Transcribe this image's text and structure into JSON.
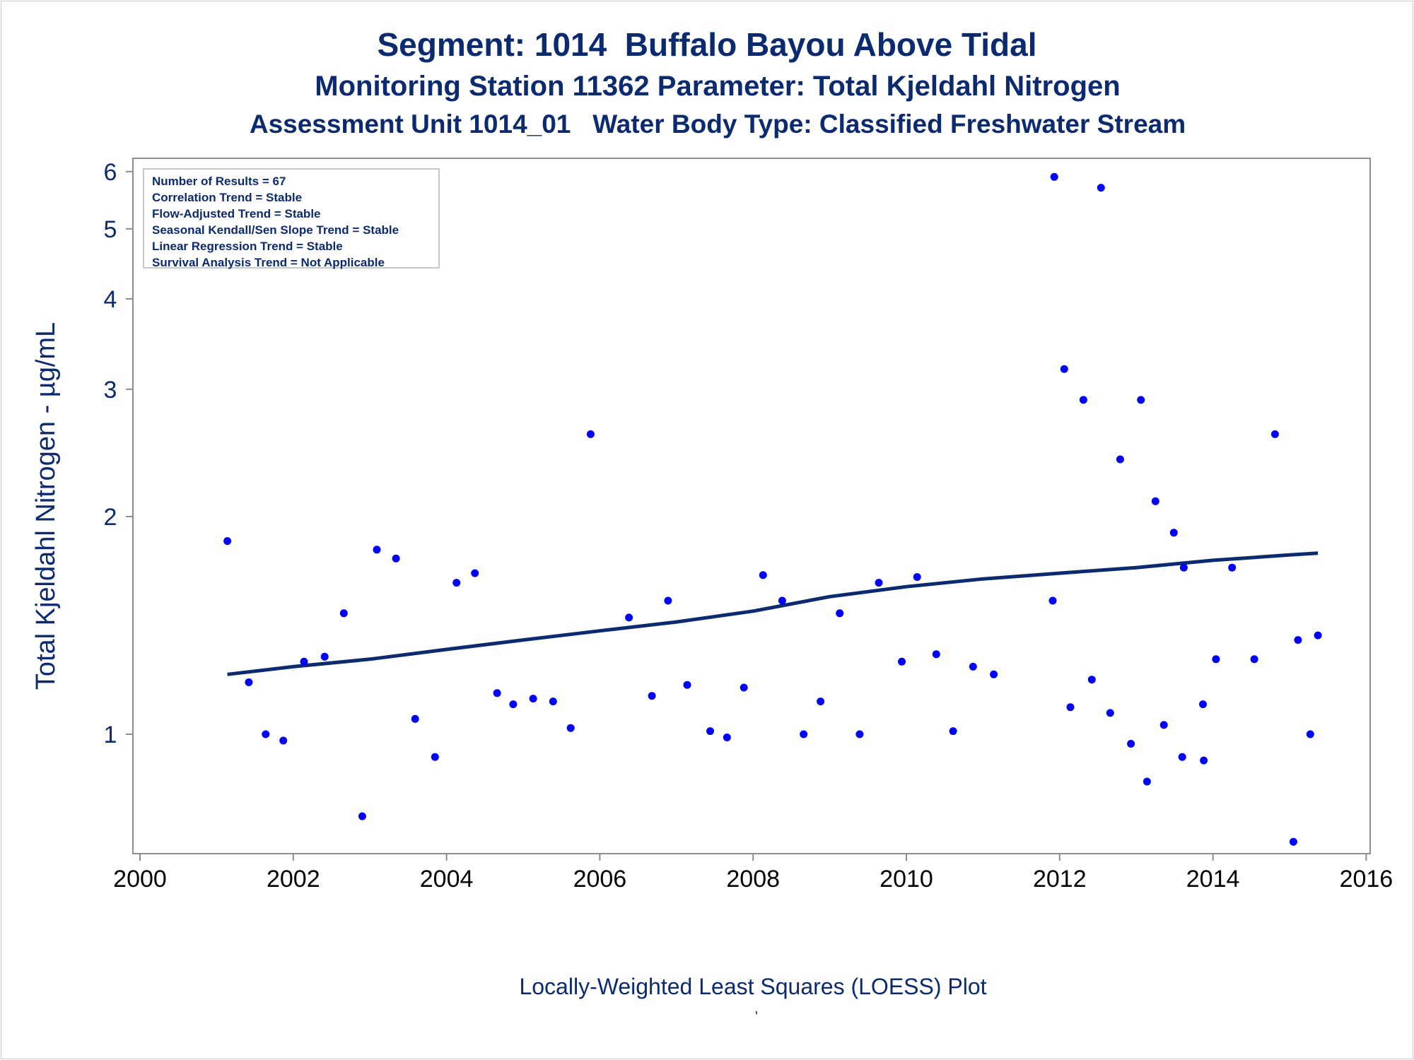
{
  "titles": {
    "line1": "Segment: 1014  Buffalo Bayou Above Tidal",
    "line2": "Monitoring Station 11362 Parameter: Total Kjeldahl Nitrogen",
    "line3": "Assessment Unit 1014_01   Water Body Type: Classified Freshwater Stream"
  },
  "stats_box": [
    "Number of Results = 67",
    "Correlation Trend = Stable",
    "Flow-Adjusted Trend = Stable",
    "Seasonal Kendall/Sen Slope Trend = Stable",
    "Linear Regression Trend = Stable",
    "Survival Analysis Trend = Not Applicable"
  ],
  "footnote": "Locally-Weighted Least Squares (LOESS) Plot",
  "footnote_mark": "'",
  "colors": {
    "text": "#0b2a6f",
    "points": "#0000ff",
    "loess": "#0b2a6f",
    "frame": "#8c8c8c"
  },
  "chart_data": {
    "type": "scatter",
    "title": "Segment: 1014  Buffalo Bayou Above Tidal",
    "xlabel": "",
    "ylabel": "Total Kjeldahl Nitrogen -  µg/mL",
    "xlim": [
      2000,
      2016
    ],
    "ylim": [
      0.6,
      6.1
    ],
    "y_scale": "log",
    "x_ticks": [
      "2000",
      "2002",
      "2004",
      "2006",
      "2008",
      "2010",
      "2012",
      "2014",
      "2016"
    ],
    "y_ticks": [
      "1",
      "2",
      "3",
      "4",
      "5",
      "6"
    ],
    "grid": false,
    "series": [
      {
        "type": "scatter",
        "x": [
          2001.14,
          2001.42,
          2001.64,
          2001.87,
          2002.14,
          2002.41,
          2002.66,
          2002.9,
          2003.09,
          2003.34,
          2003.59,
          2003.85,
          2004.13,
          2004.37,
          2004.66,
          2004.87,
          2005.13,
          2005.39,
          2005.62,
          2005.88,
          2006.38,
          2006.68,
          2006.89,
          2007.14,
          2007.44,
          2007.66,
          2007.88,
          2008.13,
          2008.38,
          2008.66,
          2008.88,
          2009.13,
          2009.39,
          2009.64,
          2009.94,
          2010.14,
          2010.39,
          2010.61,
          2010.87,
          2011.14,
          2011.91,
          2011.93,
          2012.06,
          2012.14,
          2012.31,
          2012.42,
          2012.54,
          2012.66,
          2012.79,
          2012.93,
          2013.06,
          2013.14,
          2013.25,
          2013.36,
          2013.49,
          2013.6,
          2013.62,
          2013.87,
          2013.88,
          2014.04,
          2014.25,
          2014.54,
          2014.81,
          2015.05,
          2015.11,
          2015.27,
          2015.37
        ],
        "y": [
          1.85,
          1.18,
          1.0,
          0.98,
          1.26,
          1.28,
          1.47,
          0.77,
          1.8,
          1.75,
          1.05,
          0.93,
          1.62,
          1.67,
          1.14,
          1.1,
          1.12,
          1.11,
          1.02,
          2.6,
          1.45,
          1.13,
          1.53,
          1.17,
          1.01,
          0.99,
          1.16,
          1.66,
          1.53,
          1.0,
          1.11,
          1.47,
          1.0,
          1.62,
          1.26,
          1.65,
          1.29,
          1.01,
          1.24,
          1.21,
          1.53,
          5.9,
          3.2,
          1.09,
          2.9,
          1.19,
          5.7,
          1.07,
          2.4,
          0.97,
          2.9,
          0.86,
          2.1,
          1.03,
          1.9,
          0.93,
          1.7,
          1.1,
          0.92,
          1.27,
          1.7,
          1.27,
          2.6,
          0.71,
          1.35,
          1.0,
          1.37
        ]
      },
      {
        "type": "line",
        "x": [
          2001.14,
          2002.0,
          2003.0,
          2004.0,
          2005.0,
          2006.0,
          2007.0,
          2008.0,
          2009.0,
          2010.0,
          2011.0,
          2012.0,
          2013.0,
          2014.0,
          2015.0,
          2015.37
        ],
        "y": [
          1.21,
          1.24,
          1.27,
          1.31,
          1.35,
          1.39,
          1.43,
          1.48,
          1.55,
          1.6,
          1.64,
          1.67,
          1.7,
          1.74,
          1.77,
          1.78
        ]
      }
    ]
  }
}
